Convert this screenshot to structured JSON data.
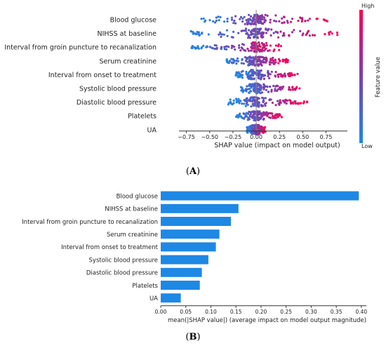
{
  "chart_data": [
    {
      "type": "scatter",
      "subtype": "shap-beeswarm",
      "panel_label": "(A)",
      "panel_label_bold": "A",
      "features": [
        "Blood glucose",
        "NIHSS at baseline",
        "Interval from groin puncture to recanalization",
        "Serum creatinine",
        "Interval from onset to treatment",
        "Systolic blood pressure",
        "Diastolic blood pressure",
        "Platelets",
        "UA"
      ],
      "xlabel": "SHAP value (impact on model output)",
      "xticks": [
        -0.75,
        -0.5,
        -0.25,
        0.0,
        0.25,
        0.5,
        0.75
      ],
      "xtick_labels": [
        "−0.75",
        "−0.50",
        "−0.25",
        "0.00",
        "0.25",
        "0.50",
        "0.75"
      ],
      "xlim": [
        -0.83,
        0.98
      ],
      "colorbar": {
        "label": "Feature value",
        "high": "High",
        "low": "Low",
        "low_color": "#1e88e5",
        "high_color": "#ff0052"
      },
      "shap_ranges": [
        {
          "feature": "Blood glucose",
          "min": -0.68,
          "max": 0.78
        },
        {
          "feature": "NIHSS at baseline",
          "min": -0.72,
          "max": 0.92
        },
        {
          "feature": "Interval from groin puncture to recanalization",
          "min": -0.7,
          "max": 0.28
        },
        {
          "feature": "Serum creatinine",
          "min": -0.32,
          "max": 0.35
        },
        {
          "feature": "Interval from onset to treatment",
          "min": -0.22,
          "max": 0.45
        },
        {
          "feature": "Systolic blood pressure",
          "min": -0.18,
          "max": 0.48
        },
        {
          "feature": "Diastolic blood pressure",
          "min": -0.3,
          "max": 0.55
        },
        {
          "feature": "Platelets",
          "min": -0.22,
          "max": 0.28
        },
        {
          "feature": "UA",
          "min": -0.1,
          "max": 0.1
        }
      ]
    },
    {
      "type": "bar",
      "orientation": "horizontal",
      "panel_label": "(B)",
      "panel_label_bold": "B",
      "categories": [
        "Blood glucose",
        "NIHSS at baseline",
        "Interval from groin puncture to recanalization",
        "Serum creatinine",
        "Interval from onset to treatment",
        "Systolic blood pressure",
        "Diastolic blood pressure",
        "Platelets",
        "UA"
      ],
      "values": [
        0.395,
        0.155,
        0.14,
        0.117,
        0.11,
        0.095,
        0.082,
        0.078,
        0.04
      ],
      "xlabel": "mean(|SHAP value|) (average impact on model output magnitude)",
      "xticks": [
        0.0,
        0.05,
        0.1,
        0.15,
        0.2,
        0.25,
        0.3,
        0.35,
        0.4
      ],
      "xtick_labels": [
        "0.00",
        "0.05",
        "0.10",
        "0.15",
        "0.20",
        "0.25",
        "0.30",
        "0.35",
        "0.40"
      ],
      "xlim": [
        0,
        0.41
      ],
      "bar_color": "#1e88e5"
    }
  ]
}
